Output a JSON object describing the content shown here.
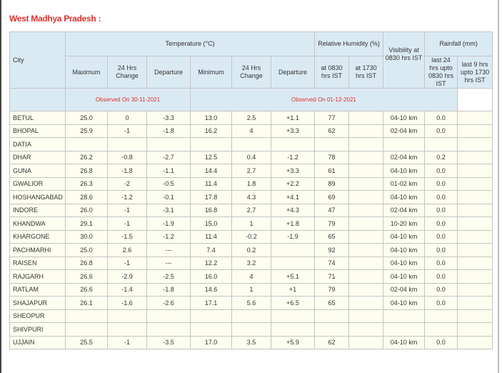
{
  "title": "West Madhya Pradesh :",
  "headers": {
    "city": "City",
    "temperature": "Temperature (°C)",
    "humidity": "Relative Humidity (%)",
    "visibility": "Visibility at 0830 hrs IST",
    "rainfall": "Rainfall (mm)",
    "maximum": "Maximum",
    "change1": "24 Hrs Change",
    "departure1": "Departure",
    "minimum": "Minimum",
    "change2": "24 Hrs Change",
    "departure2": "Departure",
    "rh0830": "at 0830 hrs IST",
    "rh1730": "at 1730 hrs IST",
    "rain24": "last 24 hrs upto 0830 hrs IST",
    "rain9": "last 9 hrs upto 1730 hrs IST",
    "observed_max": "Observed On 30-11-2021",
    "observed_min": "Observed On 01-12-2021"
  },
  "rows": [
    [
      "BETUL",
      "25.0",
      "0",
      "-3.3",
      "13.0",
      "2.5",
      "+1.1",
      "77",
      "",
      "04-10 km",
      "0.0",
      ""
    ],
    [
      "BHOPAL",
      "25.9",
      "-1",
      "-1.8",
      "16.2",
      "4",
      "+3.3",
      "62",
      "",
      "02-04 km",
      "0.0",
      ""
    ],
    [
      "DATIA",
      "",
      "",
      "",
      "",
      "",
      "",
      "",
      "",
      "",
      "",
      ""
    ],
    [
      "DHAR",
      "26.2",
      "-0.8",
      "-2.7",
      "12.5",
      "0.4",
      "-1.2",
      "78",
      "",
      "02-04 km",
      "0.2",
      ""
    ],
    [
      "GUNA",
      "26.8",
      "-1.8",
      "-1.1",
      "14.4",
      "2.7",
      "+3.3",
      "61",
      "",
      "04-10 km",
      "0.0",
      ""
    ],
    [
      "GWALIOR",
      "26.3",
      "-2",
      "-0.5",
      "11.4",
      "1.8",
      "+2.2",
      "89",
      "",
      "01-02 km",
      "0.0",
      ""
    ],
    [
      "HOSHANGABAD",
      "28.6",
      "-1.2",
      "-0.1",
      "17.8",
      "4.3",
      "+4.1",
      "69",
      "",
      "04-10 km",
      "0.0",
      ""
    ],
    [
      "INDORE",
      "26.0",
      "-1",
      "-3.1",
      "16.8",
      "2.7",
      "+4.3",
      "47",
      "",
      "02-04 km",
      "0.0",
      ""
    ],
    [
      "KHANDWA",
      "29.1",
      "-1",
      "-1.9",
      "15.0",
      "1",
      "+1.8",
      "79",
      "",
      "10-20 km",
      "0.0",
      ""
    ],
    [
      "KHARGONE",
      "30.0",
      "-1.5",
      "-1.2",
      "11.4",
      "-0.2",
      "-1.9",
      "65",
      "",
      "04-10 km",
      "0.0",
      ""
    ],
    [
      "PACHMARHI",
      "25.0",
      "2.6",
      "---",
      "7.4",
      "0.2",
      "",
      "92",
      "",
      "04-10 km",
      "0.0",
      ""
    ],
    [
      "RAISEN",
      "26.8",
      "-1",
      "---",
      "12.2",
      "3.2",
      "",
      "74",
      "",
      "04-10 km",
      "0.0",
      ""
    ],
    [
      "RAJGARH",
      "26.6",
      "-2.9",
      "-2.5",
      "16.0",
      "4",
      "+5.1",
      "71",
      "",
      "04-10 km",
      "0.0",
      ""
    ],
    [
      "RATLAM",
      "26.6",
      "-1.4",
      "-1.8",
      "14.6",
      "1",
      "+1",
      "79",
      "",
      "02-04 km",
      "0.0",
      ""
    ],
    [
      "SHAJAPUR",
      "26.1",
      "-1.6",
      "-2.6",
      "17.1",
      "5.6",
      "+6.5",
      "65",
      "",
      "04-10 km",
      "0.0",
      ""
    ],
    [
      "SHEOPUR",
      "",
      "",
      "",
      "",
      "",
      "",
      "",
      "",
      "",
      "",
      ""
    ],
    [
      "SHIVPURI",
      "",
      "",
      "",
      "",
      "",
      "",
      "",
      "",
      "",
      "",
      ""
    ],
    [
      "UJJAIN",
      "25.5",
      "-1",
      "-3.5",
      "17.0",
      "3.5",
      "+5.9",
      "62",
      "",
      "04-10 km",
      "0.0",
      ""
    ]
  ]
}
